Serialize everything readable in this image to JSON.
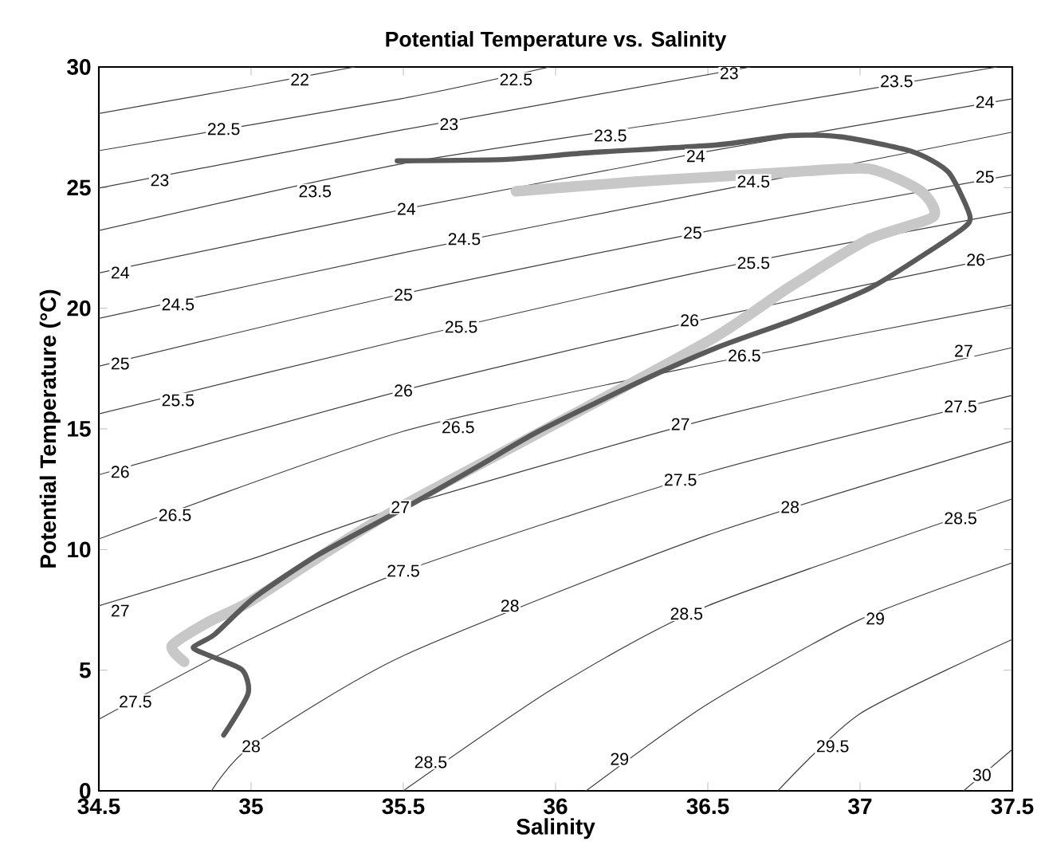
{
  "chart_data": {
    "type": "line",
    "title": "Potential Temperature vs. Salinity",
    "xlabel": "Salinity",
    "ylabel": "Potential Temperature (°C)",
    "xlim": [
      34.5,
      37.5
    ],
    "ylim": [
      0,
      30
    ],
    "xticks": [
      34.5,
      35,
      35.5,
      36,
      36.5,
      37,
      37.5
    ],
    "yticks": [
      0,
      5,
      10,
      15,
      20,
      25,
      30
    ],
    "series": [
      {
        "color": "#404040",
        "x": [
          34.5,
          35.0,
          35.34
        ],
        "values": [
          28.07,
          29.2,
          30
        ]
      },
      {
        "color": "#404040",
        "x": [
          34.5,
          35.5,
          35.98
        ],
        "values": [
          26.53,
          28.7,
          30
        ]
      },
      {
        "color": "#404040",
        "x": [
          34.5,
          35.5,
          36.64
        ],
        "values": [
          24.98,
          27.4,
          30
        ]
      },
      {
        "color": "#404040",
        "x": [
          34.5,
          35.5,
          36.5,
          37.45
        ],
        "values": [
          23.22,
          26.0,
          27.96,
          30
        ]
      },
      {
        "color": "#404040",
        "x": [
          34.5,
          35.5,
          36.5,
          37.5
        ],
        "values": [
          21.46,
          24.1,
          26.5,
          28.68
        ]
      },
      {
        "color": "#404040",
        "x": [
          34.5,
          35.5,
          36.5,
          37.5
        ],
        "values": [
          19.58,
          22.3,
          24.8,
          27.3
        ]
      },
      {
        "color": "#404040",
        "x": [
          34.5,
          35.5,
          36.5,
          37.5
        ],
        "values": [
          17.6,
          20.6,
          23.2,
          25.53
        ]
      },
      {
        "color": "#404040",
        "x": [
          34.5,
          35.5,
          36.5,
          37.5
        ],
        "values": [
          15.62,
          18.7,
          21.57,
          23.99
        ]
      },
      {
        "color": "#404040",
        "x": [
          34.5,
          35.5,
          36.5,
          37.5
        ],
        "values": [
          13.1,
          16.6,
          19.58,
          22.23
        ]
      },
      {
        "color": "#404040",
        "x": [
          34.5,
          35.5,
          36.5,
          37.5
        ],
        "values": [
          10.44,
          14.9,
          17.7,
          20.14
        ]
      },
      {
        "color": "#404040",
        "x": [
          34.5,
          35.0,
          35.5,
          36.5,
          37.5
        ],
        "values": [
          7.67,
          9.6,
          11.8,
          15.4,
          18.37
        ]
      },
      {
        "color": "#404040",
        "x": [
          34.5,
          35.0,
          35.5,
          36.5,
          37.5
        ],
        "values": [
          2.97,
          6.3,
          9.1,
          13.2,
          16.39
        ]
      },
      {
        "color": "#404040",
        "x": [
          34.87,
          35.0,
          35.5,
          36.5,
          37.5
        ],
        "values": [
          0,
          1.85,
          5.6,
          10.6,
          14.5
        ]
      },
      {
        "color": "#404040",
        "x": [
          35.5,
          36.0,
          36.5,
          37.5
        ],
        "values": [
          0,
          4.3,
          7.67,
          12.1
        ]
      },
      {
        "color": "#404040",
        "x": [
          36.1,
          36.5,
          37.0,
          37.5
        ],
        "values": [
          0,
          3.6,
          7.1,
          9.45
        ]
      },
      {
        "color": "#404040",
        "x": [
          36.73,
          37.0,
          37.5
        ],
        "values": [
          0,
          3.2,
          6.28
        ]
      },
      {
        "color": "#404040",
        "x": [
          37.34,
          37.5
        ],
        "values": [
          0,
          1.72
        ]
      },
      {
        "color": "#c8c8c8",
        "x": [
          34.78,
          34.74,
          34.86,
          34.99,
          35.25,
          35.49,
          35.96,
          36.51,
          36.77,
          37.03,
          37.24,
          37.2,
          37.03,
          36.77,
          36.53,
          36.27,
          35.87
        ],
        "values": [
          5.35,
          6.01,
          7.0,
          7.8,
          9.91,
          11.76,
          14.94,
          18.7,
          20.89,
          22.87,
          23.79,
          24.85,
          25.78,
          25.64,
          25.45,
          25.25,
          24.85
        ]
      },
      {
        "color": "#5a5a5a",
        "x": [
          34.91,
          34.99,
          34.97,
          34.86,
          34.81,
          34.88,
          35.01,
          35.22,
          35.51,
          35.75,
          35.94,
          36.27,
          36.53,
          36.79,
          37.03,
          37.2,
          37.34,
          37.36,
          37.29,
          37.17,
          36.94,
          36.77,
          36.53,
          36.1,
          35.84,
          35.48
        ],
        "values": [
          2.31,
          4.03,
          5.02,
          5.62,
          5.95,
          6.48,
          8.0,
          9.78,
          11.76,
          13.48,
          14.87,
          16.92,
          18.37,
          19.56,
          20.82,
          22.14,
          23.33,
          23.86,
          25.64,
          26.5,
          27.1,
          27.16,
          26.77,
          26.44,
          26.17,
          26.11
        ]
      }
    ],
    "annotations": [
      {
        "text": "22",
        "x": 35.16,
        "y": 29.48
      },
      {
        "text": "22.5",
        "x": 34.91,
        "y": 27.43
      },
      {
        "text": "23",
        "x": 34.7,
        "y": 25.31
      },
      {
        "text": "23.5",
        "x": 35.21,
        "y": 24.85
      },
      {
        "text": "24",
        "x": 34.57,
        "y": 21.48
      },
      {
        "text": "24.5",
        "x": 34.76,
        "y": 20.16
      },
      {
        "text": "25",
        "x": 34.57,
        "y": 17.71
      },
      {
        "text": "25.5",
        "x": 34.76,
        "y": 16.19
      },
      {
        "text": "22.5",
        "x": 35.87,
        "y": 29.48
      },
      {
        "text": "23",
        "x": 35.65,
        "y": 27.63
      },
      {
        "text": "23.5",
        "x": 36.18,
        "y": 27.16
      },
      {
        "text": "24",
        "x": 36.46,
        "y": 26.31
      },
      {
        "text": "24",
        "x": 35.51,
        "y": 24.12
      },
      {
        "text": "24.5",
        "x": 35.7,
        "y": 22.87
      },
      {
        "text": "25",
        "x": 36.45,
        "y": 23.13
      },
      {
        "text": "25",
        "x": 35.5,
        "y": 20.56
      },
      {
        "text": "25.5",
        "x": 35.69,
        "y": 19.23
      },
      {
        "text": "26",
        "x": 36.44,
        "y": 19.5
      },
      {
        "text": "26",
        "x": 35.5,
        "y": 16.59
      },
      {
        "text": "26.5",
        "x": 35.68,
        "y": 15.07
      },
      {
        "text": "27",
        "x": 36.41,
        "y": 15.2
      },
      {
        "text": "23",
        "x": 36.57,
        "y": 29.74
      },
      {
        "text": "23.5",
        "x": 37.12,
        "y": 29.41
      },
      {
        "text": "24",
        "x": 37.41,
        "y": 28.55
      },
      {
        "text": "24.5",
        "x": 36.65,
        "y": 25.25
      },
      {
        "text": "25",
        "x": 37.41,
        "y": 25.45
      },
      {
        "text": "25.5",
        "x": 36.65,
        "y": 21.88
      },
      {
        "text": "26",
        "x": 37.38,
        "y": 22.01
      },
      {
        "text": "26.5",
        "x": 36.62,
        "y": 18.04
      },
      {
        "text": "27",
        "x": 37.34,
        "y": 18.24
      },
      {
        "text": "27.5",
        "x": 37.33,
        "y": 15.93
      },
      {
        "text": "26",
        "x": 34.57,
        "y": 13.22
      },
      {
        "text": "26.5",
        "x": 34.75,
        "y": 11.43
      },
      {
        "text": "27",
        "x": 35.49,
        "y": 11.76
      },
      {
        "text": "27",
        "x": 34.57,
        "y": 7.47
      },
      {
        "text": "27.5",
        "x": 34.62,
        "y": 3.7
      },
      {
        "text": "28",
        "x": 35.0,
        "y": 1.85
      },
      {
        "text": "27.5",
        "x": 35.5,
        "y": 9.12
      },
      {
        "text": "27.5",
        "x": 36.41,
        "y": 12.89
      },
      {
        "text": "28",
        "x": 35.85,
        "y": 7.67
      },
      {
        "text": "28.5",
        "x": 36.43,
        "y": 7.34
      },
      {
        "text": "28.5",
        "x": 35.59,
        "y": 1.19
      },
      {
        "text": "29",
        "x": 36.21,
        "y": 1.32
      },
      {
        "text": "28",
        "x": 36.77,
        "y": 11.76
      },
      {
        "text": "28.5",
        "x": 37.33,
        "y": 11.3
      },
      {
        "text": "29",
        "x": 37.05,
        "y": 7.14
      },
      {
        "text": "29.5",
        "x": 36.91,
        "y": 1.85
      },
      {
        "text": "30",
        "x": 37.4,
        "y": 0.66
      }
    ]
  }
}
